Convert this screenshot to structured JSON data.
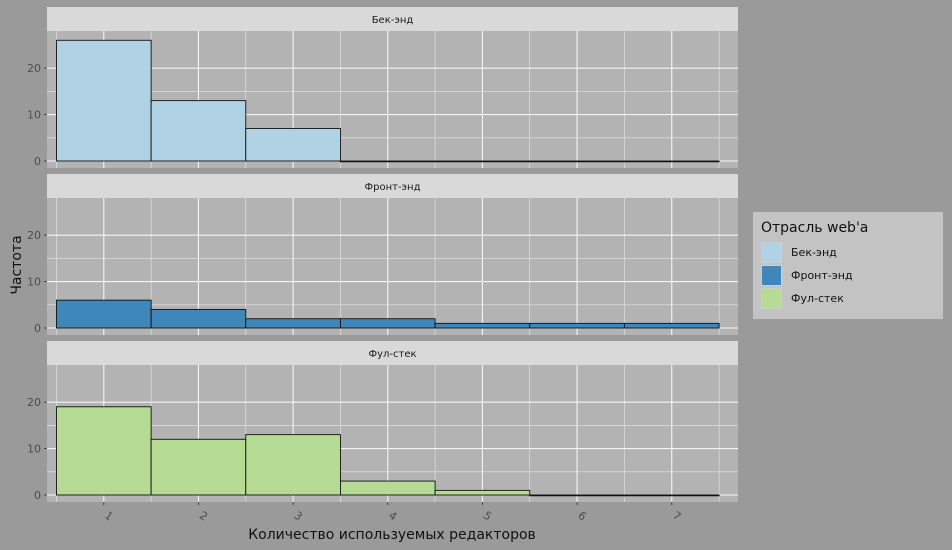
{
  "chart_data": {
    "type": "bar",
    "xlabel": "Количество используемых редакторов",
    "ylabel": "Частота",
    "x": [
      1,
      2,
      3,
      4,
      5,
      6,
      7
    ],
    "x_tick_labels": [
      "1",
      "2",
      "3",
      "4",
      "5",
      "6",
      "7"
    ],
    "xlim": [
      0.4,
      7.7
    ],
    "ylim": [
      0,
      28
    ],
    "y_ticks": [
      0,
      10,
      20
    ],
    "grid": true,
    "legend_placement": "right",
    "legend_title": "Отрасль web'а",
    "panels": [
      {
        "name": "Бек-энд",
        "color": "#b1d2e4",
        "values": [
          26,
          13,
          7,
          0,
          0,
          0,
          0
        ]
      },
      {
        "name": "Фронт-энд",
        "color": "#3f87bb",
        "values": [
          6,
          4,
          2,
          2,
          1,
          1,
          1
        ]
      },
      {
        "name": "Фул-стек",
        "color": "#b6db94",
        "values": [
          19,
          12,
          13,
          3,
          1,
          0,
          0
        ]
      }
    ]
  }
}
